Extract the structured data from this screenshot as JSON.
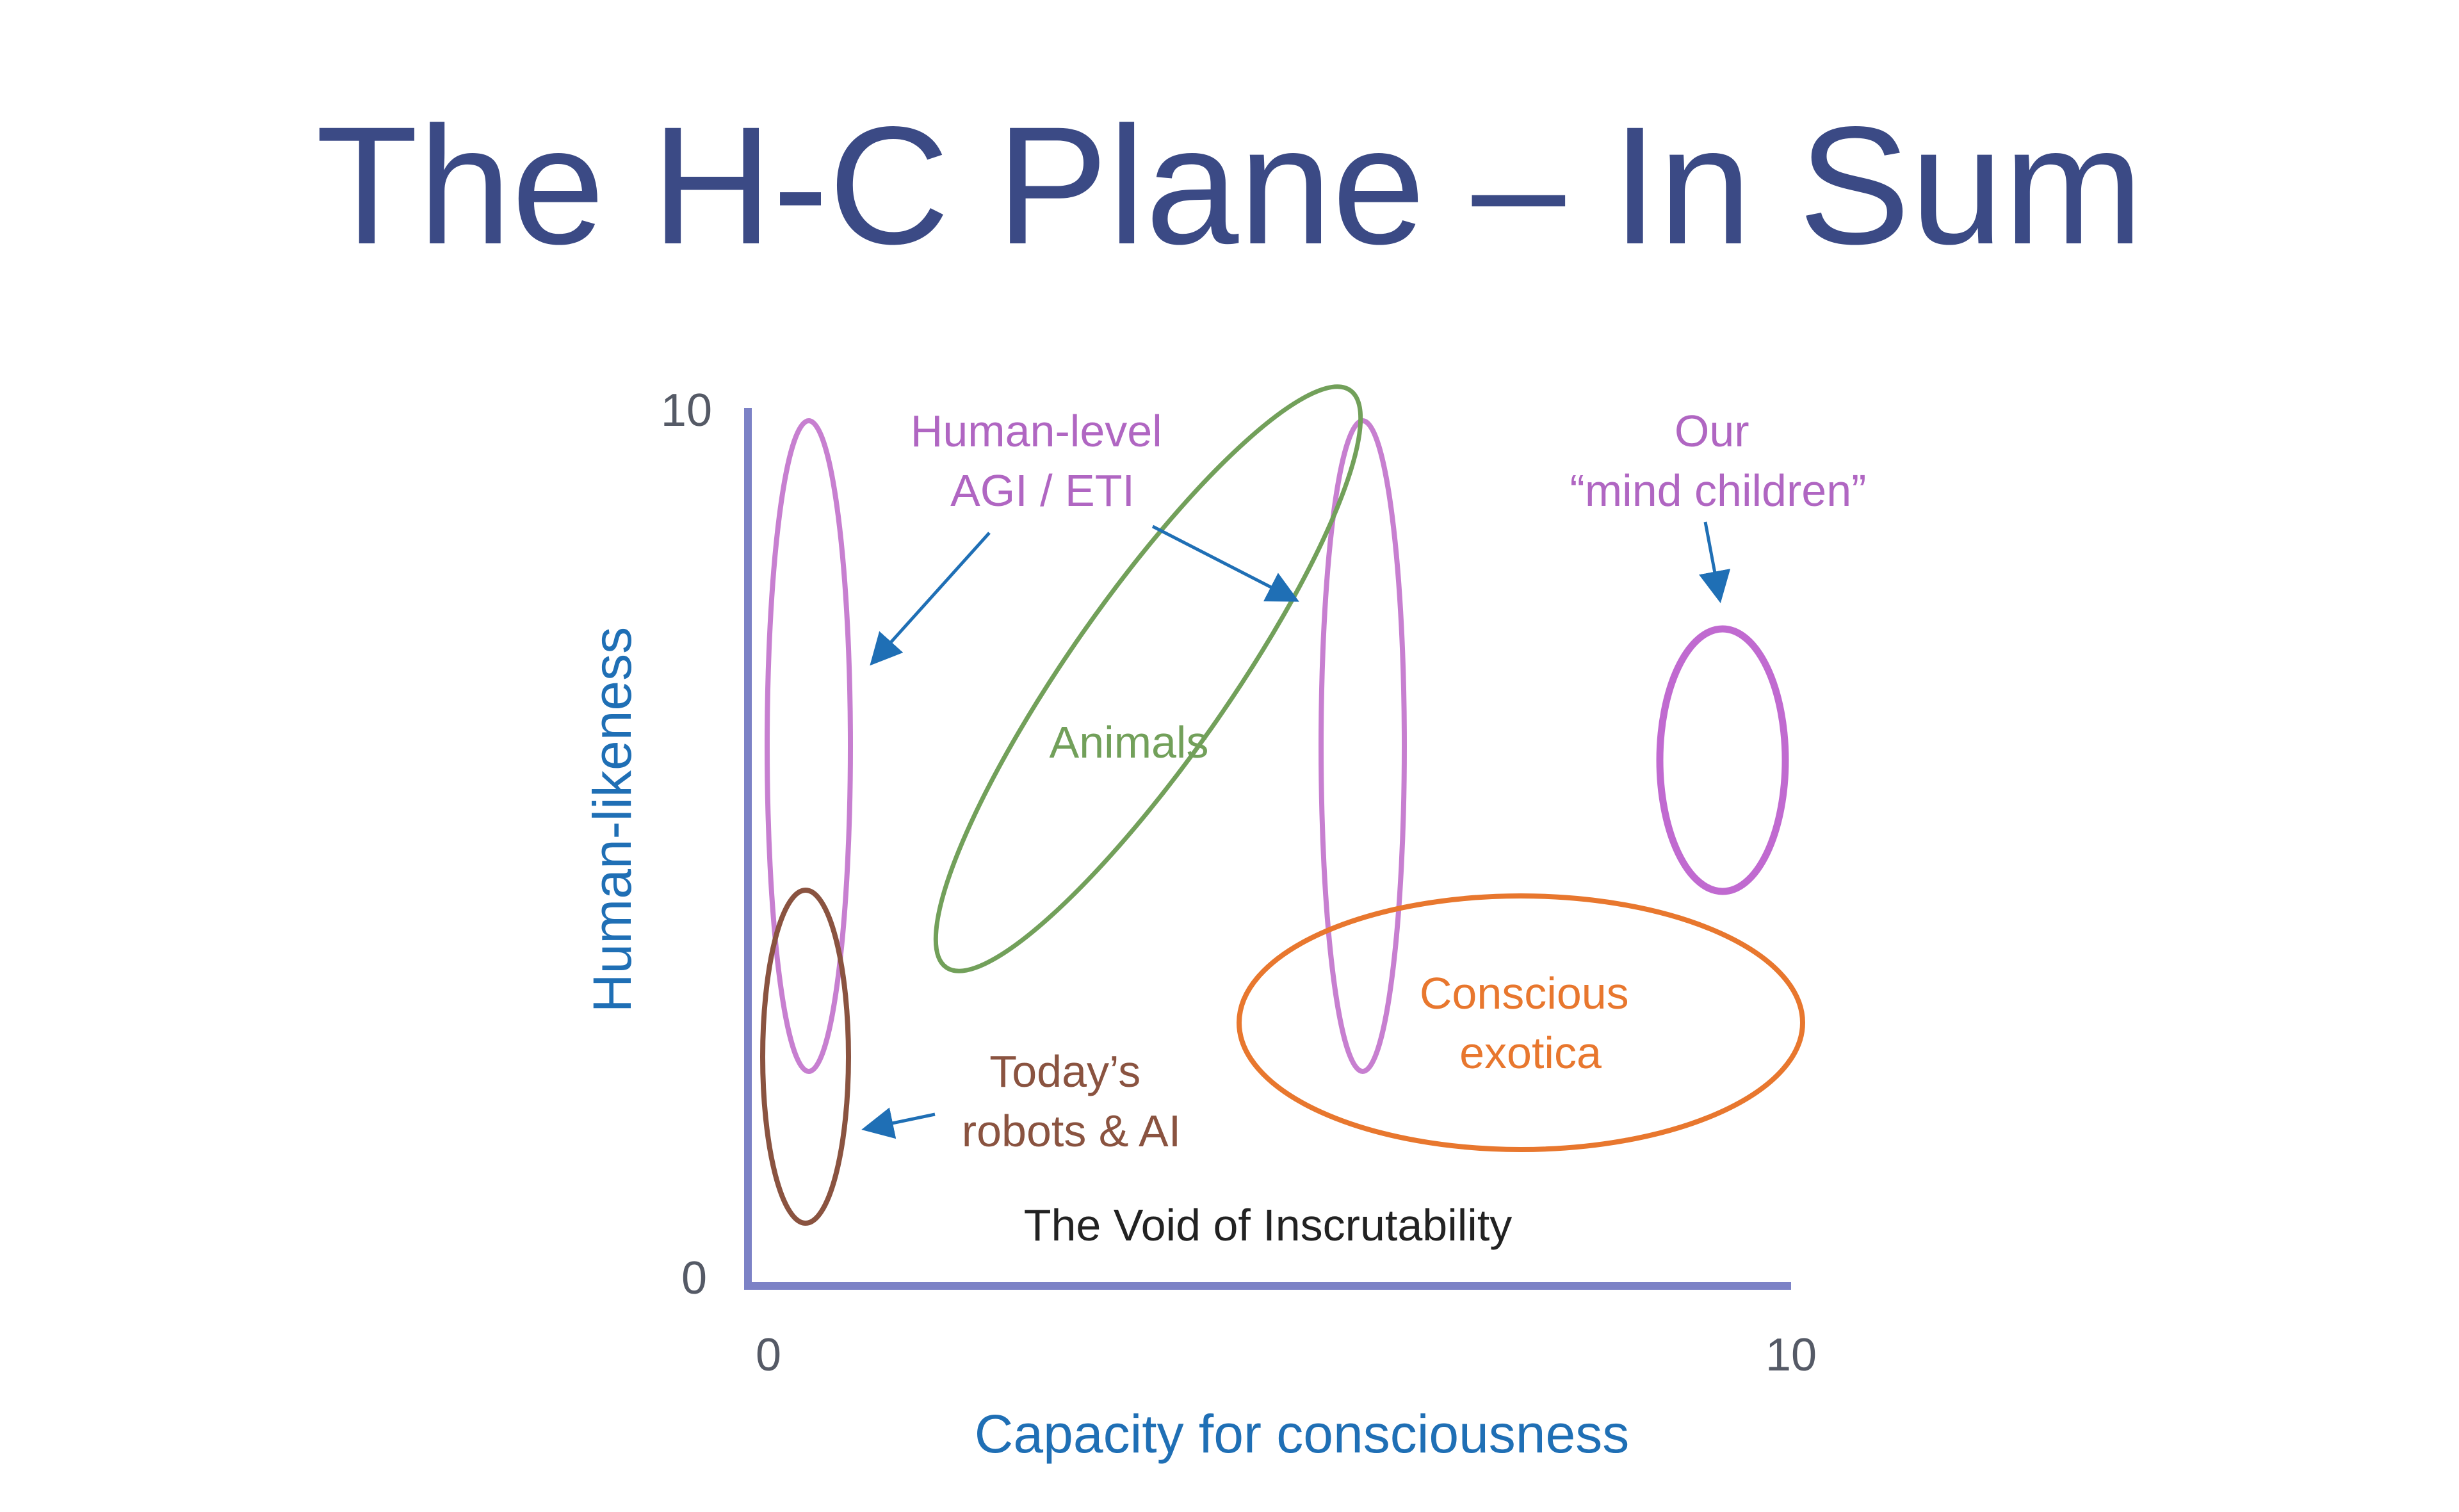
{
  "title": "The H-C Plane – In Sum",
  "axes": {
    "y_label": "Human-likeness",
    "x_label": "Capacity for consciousness",
    "y_max_tick": "10",
    "y_min_tick": "0",
    "x_min_tick": "0",
    "x_max_tick": "10",
    "color": "#7c82c6",
    "label_color": "#1f6fb5",
    "tick_color": "#555a66"
  },
  "regions": [
    {
      "id": "agi-left",
      "color": "#c77fd0"
    },
    {
      "id": "agi-right",
      "color": "#c77fd0"
    },
    {
      "id": "animals",
      "label": "Animals",
      "color": "#72a05a"
    },
    {
      "id": "mind-children",
      "color": "#c06ad0"
    },
    {
      "id": "conscious-exotica",
      "label_lines": [
        "Conscious",
        "exotica"
      ],
      "color": "#e8772e"
    },
    {
      "id": "todays-robots",
      "color": "#8a5340"
    }
  ],
  "annotations": {
    "agi_lines": [
      "Human-level",
      "AGI / ETI"
    ],
    "agi_color": "#b066c2",
    "mind_children_lines": [
      "Our",
      "“mind children”"
    ],
    "mind_children_color": "#b066c2",
    "robots_lines": [
      "Today’s",
      "robots & AI"
    ],
    "robots_color": "#8a5340",
    "void_label": "The Void of Inscrutability",
    "void_color": "#222222",
    "arrow_color": "#1f6fb5"
  }
}
